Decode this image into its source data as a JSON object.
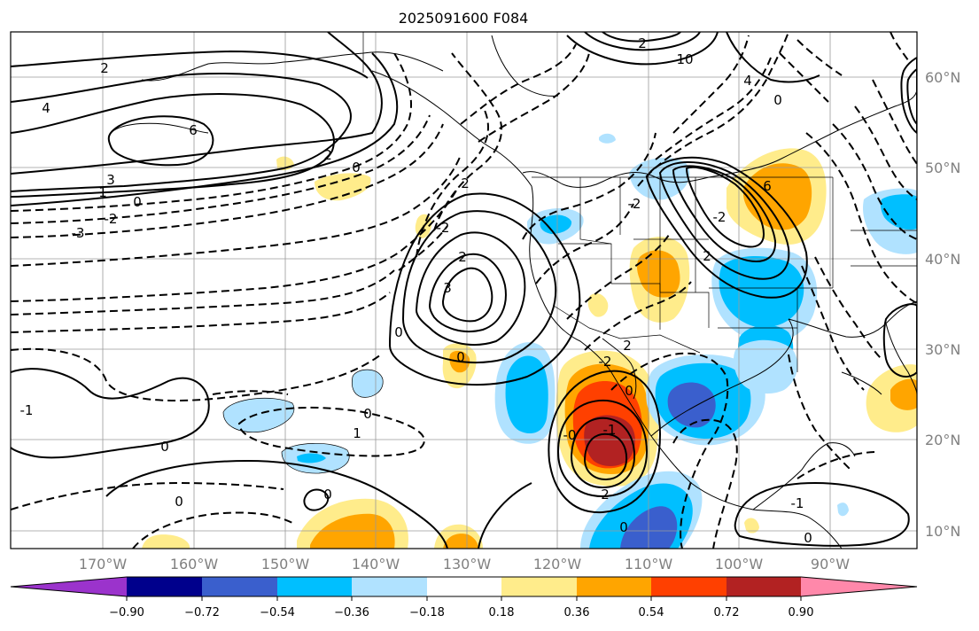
{
  "title": "2025091600 F084",
  "map": {
    "lon_labels": [
      "170°W",
      "160°W",
      "150°W",
      "140°W",
      "130°W",
      "120°W",
      "110°W",
      "100°W",
      "90°W"
    ],
    "lat_labels": [
      "60°N",
      "50°N",
      "40°N",
      "30°N",
      "20°N",
      "10°N"
    ],
    "contour_labels": [
      "2",
      "4",
      "6",
      "3",
      "1",
      "0",
      "-2",
      "-3",
      "2",
      "0",
      "2",
      "3",
      "0",
      "2",
      "-2",
      "0",
      "2",
      "-2",
      "0",
      "-1",
      "-0",
      "0",
      "0",
      "0",
      "-1",
      "1",
      "0",
      "-1",
      "0",
      "2",
      "10",
      "2",
      "4",
      "0",
      "-2",
      "6",
      "2",
      "-2",
      "0"
    ]
  },
  "colorbar": {
    "tick_labels": [
      "−0.90",
      "−0.72",
      "−0.54",
      "−0.36",
      "−0.18",
      "0.18",
      "0.36",
      "0.54",
      "0.72",
      "0.90"
    ],
    "colors": [
      "#9b33cc",
      "#00008c",
      "#3a5fcd",
      "#00bfff",
      "#b0e2ff",
      "#ffffff",
      "#ffec8b",
      "#ffa500",
      "#ff4000",
      "#b22222",
      "#ff88aa"
    ]
  }
}
